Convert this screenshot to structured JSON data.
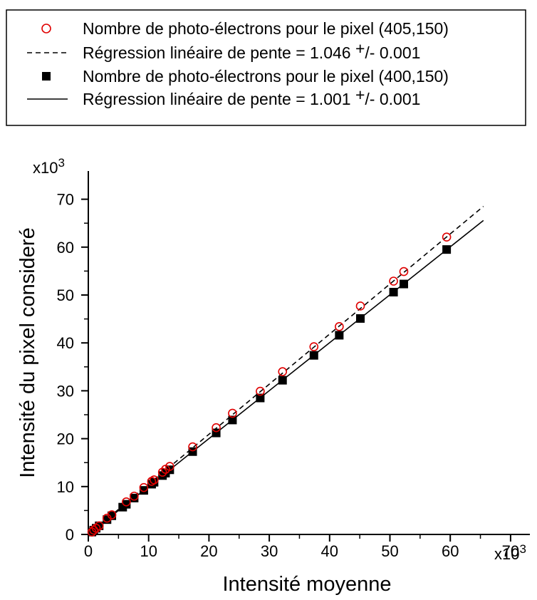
{
  "chart_data": {
    "type": "scatter",
    "title": "",
    "xlabel": "Intensité moyenne",
    "ylabel": "Intensité du pixel consideré",
    "x_multiplier": "x10",
    "y_multiplier": "x10",
    "multiplier_exponent": "3",
    "xlim": [
      0,
      73
    ],
    "ylim": [
      0,
      75
    ],
    "xticks": [
      "0",
      "10",
      "20",
      "30",
      "40",
      "50",
      "60",
      "70"
    ],
    "yticks": [
      "0",
      "10",
      "20",
      "30",
      "40",
      "50",
      "60",
      "70"
    ],
    "grid": false,
    "legend_position": "top",
    "legend": [
      {
        "marker": "open-circle",
        "color": "#e00000",
        "text_main": "Nombre de photo-électrons pour le pixel (405,150)"
      },
      {
        "marker": "dashed-line",
        "color": "#000000",
        "text_main": "Régression linéaire de pente = 1.046 ",
        "text_pm": "+",
        "text_tail": "/- 0.001"
      },
      {
        "marker": "filled-square",
        "color": "#000000",
        "text_main": "Nombre de photo-électrons pour le pixel (400,150)"
      },
      {
        "marker": "solid-line",
        "color": "#000000",
        "text_main": "Régression linéaire de pente = 1.001 ",
        "text_pm": "+",
        "text_tail": "/- 0.001"
      }
    ],
    "series": [
      {
        "name": "Nombre de photo-électrons pour le pixel (405,150)",
        "marker": "open-circle",
        "color": "#e00000",
        "points": [
          [
            0.6,
            0.5
          ],
          [
            0.9,
            0.9
          ],
          [
            1.3,
            1.3
          ],
          [
            1.8,
            1.8
          ],
          [
            3.1,
            3.4
          ],
          [
            3.9,
            4.1
          ],
          [
            6.3,
            6.8
          ],
          [
            7.6,
            8.0
          ],
          [
            9.2,
            9.8
          ],
          [
            10.5,
            11.1
          ],
          [
            10.9,
            11.4
          ],
          [
            12.3,
            13.0
          ],
          [
            12.8,
            13.6
          ],
          [
            13.5,
            14.2
          ],
          [
            17.3,
            18.3
          ],
          [
            21.2,
            22.3
          ],
          [
            23.9,
            25.3
          ],
          [
            28.5,
            29.9
          ],
          [
            32.2,
            34.0
          ],
          [
            37.4,
            39.2
          ],
          [
            41.6,
            43.4
          ],
          [
            45.1,
            47.7
          ],
          [
            50.6,
            52.9
          ],
          [
            52.3,
            54.9
          ],
          [
            59.4,
            62.1
          ]
        ]
      },
      {
        "name": "Régression linéaire de pente = 1.046 +/- 0.001",
        "line": "dashed",
        "color": "#000000",
        "slope": 1.046,
        "x_range": [
          0,
          65.5
        ]
      },
      {
        "name": "Nombre de photo-électrons pour le pixel (400,150)",
        "marker": "filled-square",
        "color": "#000000",
        "points": [
          [
            0.6,
            0.5
          ],
          [
            0.9,
            0.9
          ],
          [
            1.3,
            1.3
          ],
          [
            1.8,
            1.8
          ],
          [
            3.1,
            3.1
          ],
          [
            3.9,
            3.9
          ],
          [
            5.7,
            5.7
          ],
          [
            6.3,
            6.3
          ],
          [
            7.6,
            7.6
          ],
          [
            9.2,
            9.2
          ],
          [
            10.5,
            10.5
          ],
          [
            10.9,
            10.9
          ],
          [
            12.3,
            12.3
          ],
          [
            12.8,
            12.8
          ],
          [
            13.5,
            13.5
          ],
          [
            17.3,
            17.3
          ],
          [
            21.2,
            21.2
          ],
          [
            23.9,
            23.9
          ],
          [
            28.5,
            28.5
          ],
          [
            32.2,
            32.2
          ],
          [
            37.4,
            37.4
          ],
          [
            41.6,
            41.6
          ],
          [
            45.1,
            45.1
          ],
          [
            50.6,
            50.6
          ],
          [
            52.3,
            52.3
          ],
          [
            59.4,
            59.5
          ]
        ]
      },
      {
        "name": "Régression linéaire de pente = 1.001 +/- 0.001",
        "line": "solid",
        "color": "#000000",
        "slope": 1.001,
        "x_range": [
          0,
          65.5
        ]
      }
    ]
  }
}
